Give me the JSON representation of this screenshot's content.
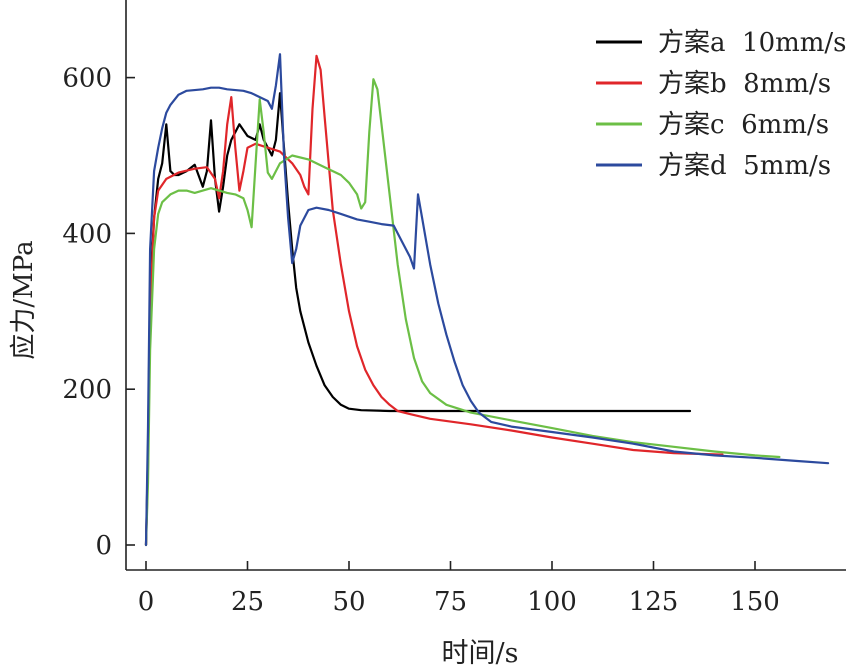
{
  "chart_data": {
    "type": "line",
    "title": "",
    "xlabel": "时间/s",
    "ylabel": "应力/MPa",
    "xlim": [
      -5,
      170
    ],
    "ylim": [
      -30,
      700
    ],
    "xticks": [
      0,
      25,
      50,
      75,
      100,
      125,
      150
    ],
    "yticks": [
      0,
      200,
      400,
      600
    ],
    "grid": false,
    "legend_position": "top-right",
    "series": [
      {
        "name": "方案a  10mm/s",
        "color": "#000000",
        "points": [
          [
            0,
            0
          ],
          [
            0.5,
            120
          ],
          [
            1,
            330
          ],
          [
            2,
            420
          ],
          [
            3,
            470
          ],
          [
            4,
            490
          ],
          [
            5,
            540
          ],
          [
            6,
            480
          ],
          [
            7,
            475
          ],
          [
            8,
            475
          ],
          [
            10,
            480
          ],
          [
            12,
            488
          ],
          [
            14,
            460
          ],
          [
            15,
            480
          ],
          [
            16,
            545
          ],
          [
            17,
            470
          ],
          [
            18,
            428
          ],
          [
            19,
            460
          ],
          [
            20,
            500
          ],
          [
            21,
            520
          ],
          [
            23,
            540
          ],
          [
            25,
            525
          ],
          [
            27,
            520
          ],
          [
            28,
            540
          ],
          [
            29,
            520
          ],
          [
            31,
            500
          ],
          [
            32,
            520
          ],
          [
            33,
            580
          ],
          [
            34,
            510
          ],
          [
            35,
            440
          ],
          [
            36,
            380
          ],
          [
            37,
            330
          ],
          [
            38,
            300
          ],
          [
            40,
            260
          ],
          [
            42,
            230
          ],
          [
            44,
            205
          ],
          [
            46,
            190
          ],
          [
            48,
            180
          ],
          [
            50,
            175
          ],
          [
            53,
            173
          ],
          [
            60,
            172
          ],
          [
            80,
            172
          ],
          [
            100,
            172
          ],
          [
            120,
            172
          ],
          [
            134,
            172
          ]
        ]
      },
      {
        "name": "方案b  8mm/s",
        "color": "#e0262a",
        "points": [
          [
            0,
            0
          ],
          [
            0.5,
            100
          ],
          [
            1,
            300
          ],
          [
            2,
            420
          ],
          [
            3,
            455
          ],
          [
            5,
            470
          ],
          [
            8,
            478
          ],
          [
            12,
            483
          ],
          [
            15,
            485
          ],
          [
            17,
            470
          ],
          [
            18,
            445
          ],
          [
            19,
            480
          ],
          [
            20,
            540
          ],
          [
            21,
            575
          ],
          [
            22,
            510
          ],
          [
            23,
            455
          ],
          [
            24,
            480
          ],
          [
            25,
            510
          ],
          [
            27,
            515
          ],
          [
            30,
            510
          ],
          [
            33,
            505
          ],
          [
            36,
            490
          ],
          [
            38,
            475
          ],
          [
            39,
            460
          ],
          [
            40,
            450
          ],
          [
            41,
            560
          ],
          [
            42,
            628
          ],
          [
            43,
            610
          ],
          [
            44,
            550
          ],
          [
            45,
            490
          ],
          [
            46,
            430
          ],
          [
            48,
            360
          ],
          [
            50,
            300
          ],
          [
            52,
            255
          ],
          [
            54,
            225
          ],
          [
            56,
            205
          ],
          [
            58,
            190
          ],
          [
            60,
            180
          ],
          [
            62,
            172
          ],
          [
            65,
            168
          ],
          [
            70,
            162
          ],
          [
            80,
            155
          ],
          [
            90,
            147
          ],
          [
            100,
            138
          ],
          [
            110,
            130
          ],
          [
            120,
            122
          ],
          [
            130,
            118
          ],
          [
            142,
            116
          ]
        ]
      },
      {
        "name": "方案c  6mm/s",
        "color": "#6cbf46",
        "points": [
          [
            0,
            0
          ],
          [
            0.5,
            80
          ],
          [
            1,
            250
          ],
          [
            2,
            380
          ],
          [
            3,
            425
          ],
          [
            4,
            440
          ],
          [
            6,
            450
          ],
          [
            8,
            455
          ],
          [
            10,
            455
          ],
          [
            12,
            452
          ],
          [
            14,
            455
          ],
          [
            16,
            458
          ],
          [
            18,
            455
          ],
          [
            20,
            452
          ],
          [
            22,
            450
          ],
          [
            24,
            445
          ],
          [
            25,
            430
          ],
          [
            26,
            408
          ],
          [
            27,
            490
          ],
          [
            28,
            572
          ],
          [
            29,
            530
          ],
          [
            30,
            478
          ],
          [
            31,
            470
          ],
          [
            32,
            480
          ],
          [
            33,
            490
          ],
          [
            36,
            500
          ],
          [
            40,
            495
          ],
          [
            44,
            485
          ],
          [
            48,
            475
          ],
          [
            50,
            465
          ],
          [
            52,
            450
          ],
          [
            53,
            432
          ],
          [
            54,
            440
          ],
          [
            55,
            530
          ],
          [
            56,
            598
          ],
          [
            57,
            585
          ],
          [
            58,
            540
          ],
          [
            60,
            450
          ],
          [
            62,
            360
          ],
          [
            64,
            290
          ],
          [
            66,
            240
          ],
          [
            68,
            210
          ],
          [
            70,
            195
          ],
          [
            74,
            180
          ],
          [
            80,
            170
          ],
          [
            90,
            160
          ],
          [
            100,
            150
          ],
          [
            110,
            140
          ],
          [
            120,
            132
          ],
          [
            130,
            126
          ],
          [
            140,
            120
          ],
          [
            150,
            115
          ],
          [
            156,
            113
          ]
        ]
      },
      {
        "name": "方案d  5mm/s",
        "color": "#2c4a9e",
        "points": [
          [
            0,
            0
          ],
          [
            0.5,
            150
          ],
          [
            1,
            380
          ],
          [
            2,
            480
          ],
          [
            3,
            510
          ],
          [
            4,
            535
          ],
          [
            5,
            555
          ],
          [
            6,
            565
          ],
          [
            8,
            578
          ],
          [
            10,
            583
          ],
          [
            14,
            585
          ],
          [
            16,
            587
          ],
          [
            18,
            587
          ],
          [
            20,
            585
          ],
          [
            24,
            583
          ],
          [
            26,
            580
          ],
          [
            28,
            575
          ],
          [
            30,
            570
          ],
          [
            31,
            560
          ],
          [
            32,
            590
          ],
          [
            33,
            630
          ],
          [
            34,
            500
          ],
          [
            35,
            420
          ],
          [
            36,
            362
          ],
          [
            37,
            380
          ],
          [
            38,
            410
          ],
          [
            40,
            430
          ],
          [
            42,
            433
          ],
          [
            45,
            430
          ],
          [
            48,
            425
          ],
          [
            52,
            418
          ],
          [
            55,
            415
          ],
          [
            58,
            412
          ],
          [
            61,
            410
          ],
          [
            63,
            390
          ],
          [
            65,
            370
          ],
          [
            66,
            355
          ],
          [
            67,
            450
          ],
          [
            68,
            420
          ],
          [
            70,
            360
          ],
          [
            72,
            310
          ],
          [
            74,
            270
          ],
          [
            76,
            235
          ],
          [
            78,
            205
          ],
          [
            80,
            185
          ],
          [
            82,
            170
          ],
          [
            85,
            158
          ],
          [
            90,
            152
          ],
          [
            100,
            145
          ],
          [
            110,
            138
          ],
          [
            120,
            130
          ],
          [
            130,
            120
          ],
          [
            140,
            115
          ],
          [
            150,
            112
          ],
          [
            160,
            108
          ],
          [
            168,
            105
          ]
        ]
      }
    ]
  }
}
